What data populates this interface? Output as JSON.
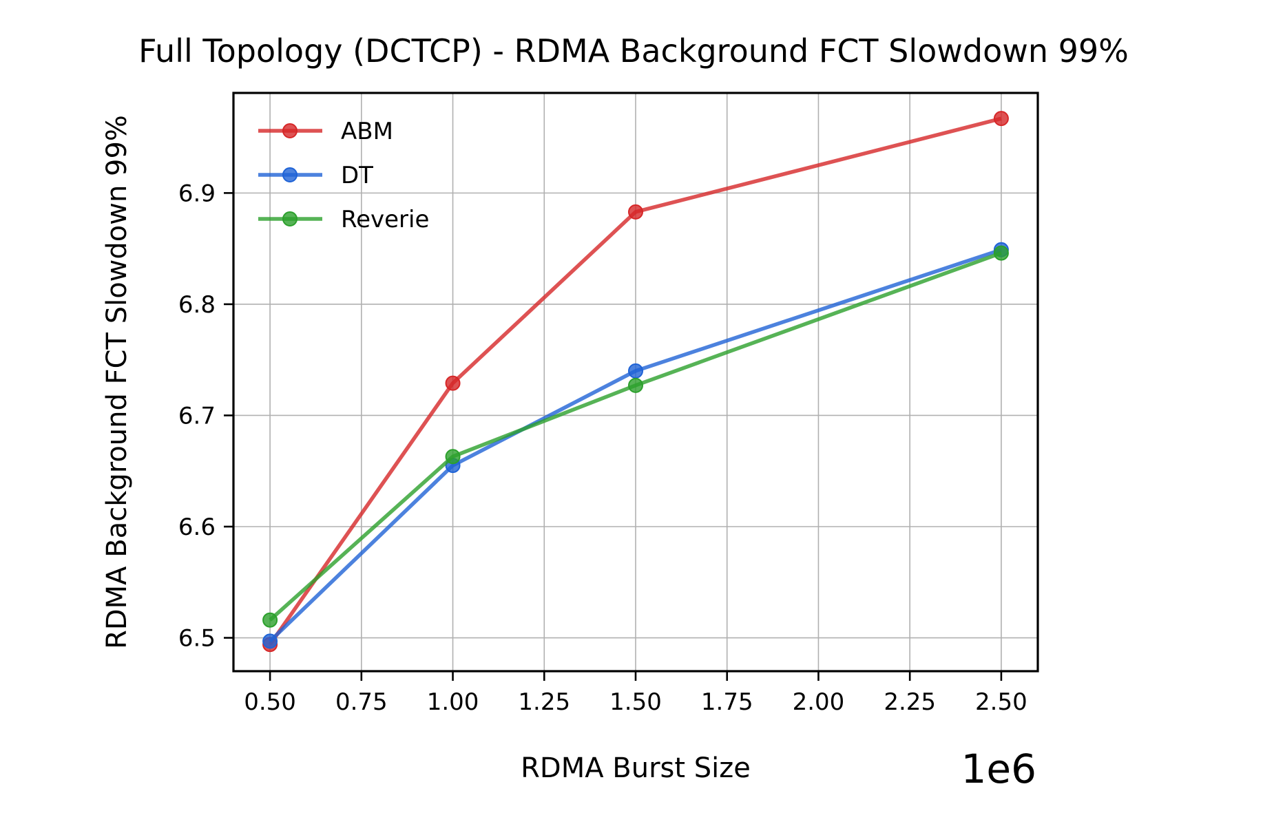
{
  "chart_data": {
    "type": "line",
    "title": "Full Topology (DCTCP) - RDMA Background FCT Slowdown 99%",
    "xlabel": "RDMA Burst Size",
    "ylabel": "RDMA Background FCT Slowdown 99%",
    "x_offset_label": "1e6",
    "xlim": [
      0.4,
      2.6
    ],
    "ylim": [
      6.47,
      6.99
    ],
    "xticks": [
      0.5,
      0.75,
      1.0,
      1.25,
      1.5,
      1.75,
      2.0,
      2.25,
      2.5
    ],
    "xtick_labels": [
      "0.50",
      "0.75",
      "1.00",
      "1.25",
      "1.50",
      "1.75",
      "2.00",
      "2.25",
      "2.50"
    ],
    "yticks": [
      6.5,
      6.6,
      6.7,
      6.8,
      6.9
    ],
    "ytick_labels": [
      "6.5",
      "6.6",
      "6.7",
      "6.8",
      "6.9"
    ],
    "grid": true,
    "legend_position": "top-left",
    "x": [
      0.5,
      1.0,
      1.5,
      2.5
    ],
    "series": [
      {
        "name": "ABM",
        "color": "#d62728",
        "values": [
          6.494,
          6.729,
          6.883,
          6.967
        ]
      },
      {
        "name": "DT",
        "color": "#1f63d6",
        "values": [
          6.497,
          6.655,
          6.74,
          6.849
        ]
      },
      {
        "name": "Reverie",
        "color": "#2ca02c",
        "values": [
          6.516,
          6.663,
          6.727,
          6.846
        ]
      }
    ]
  }
}
